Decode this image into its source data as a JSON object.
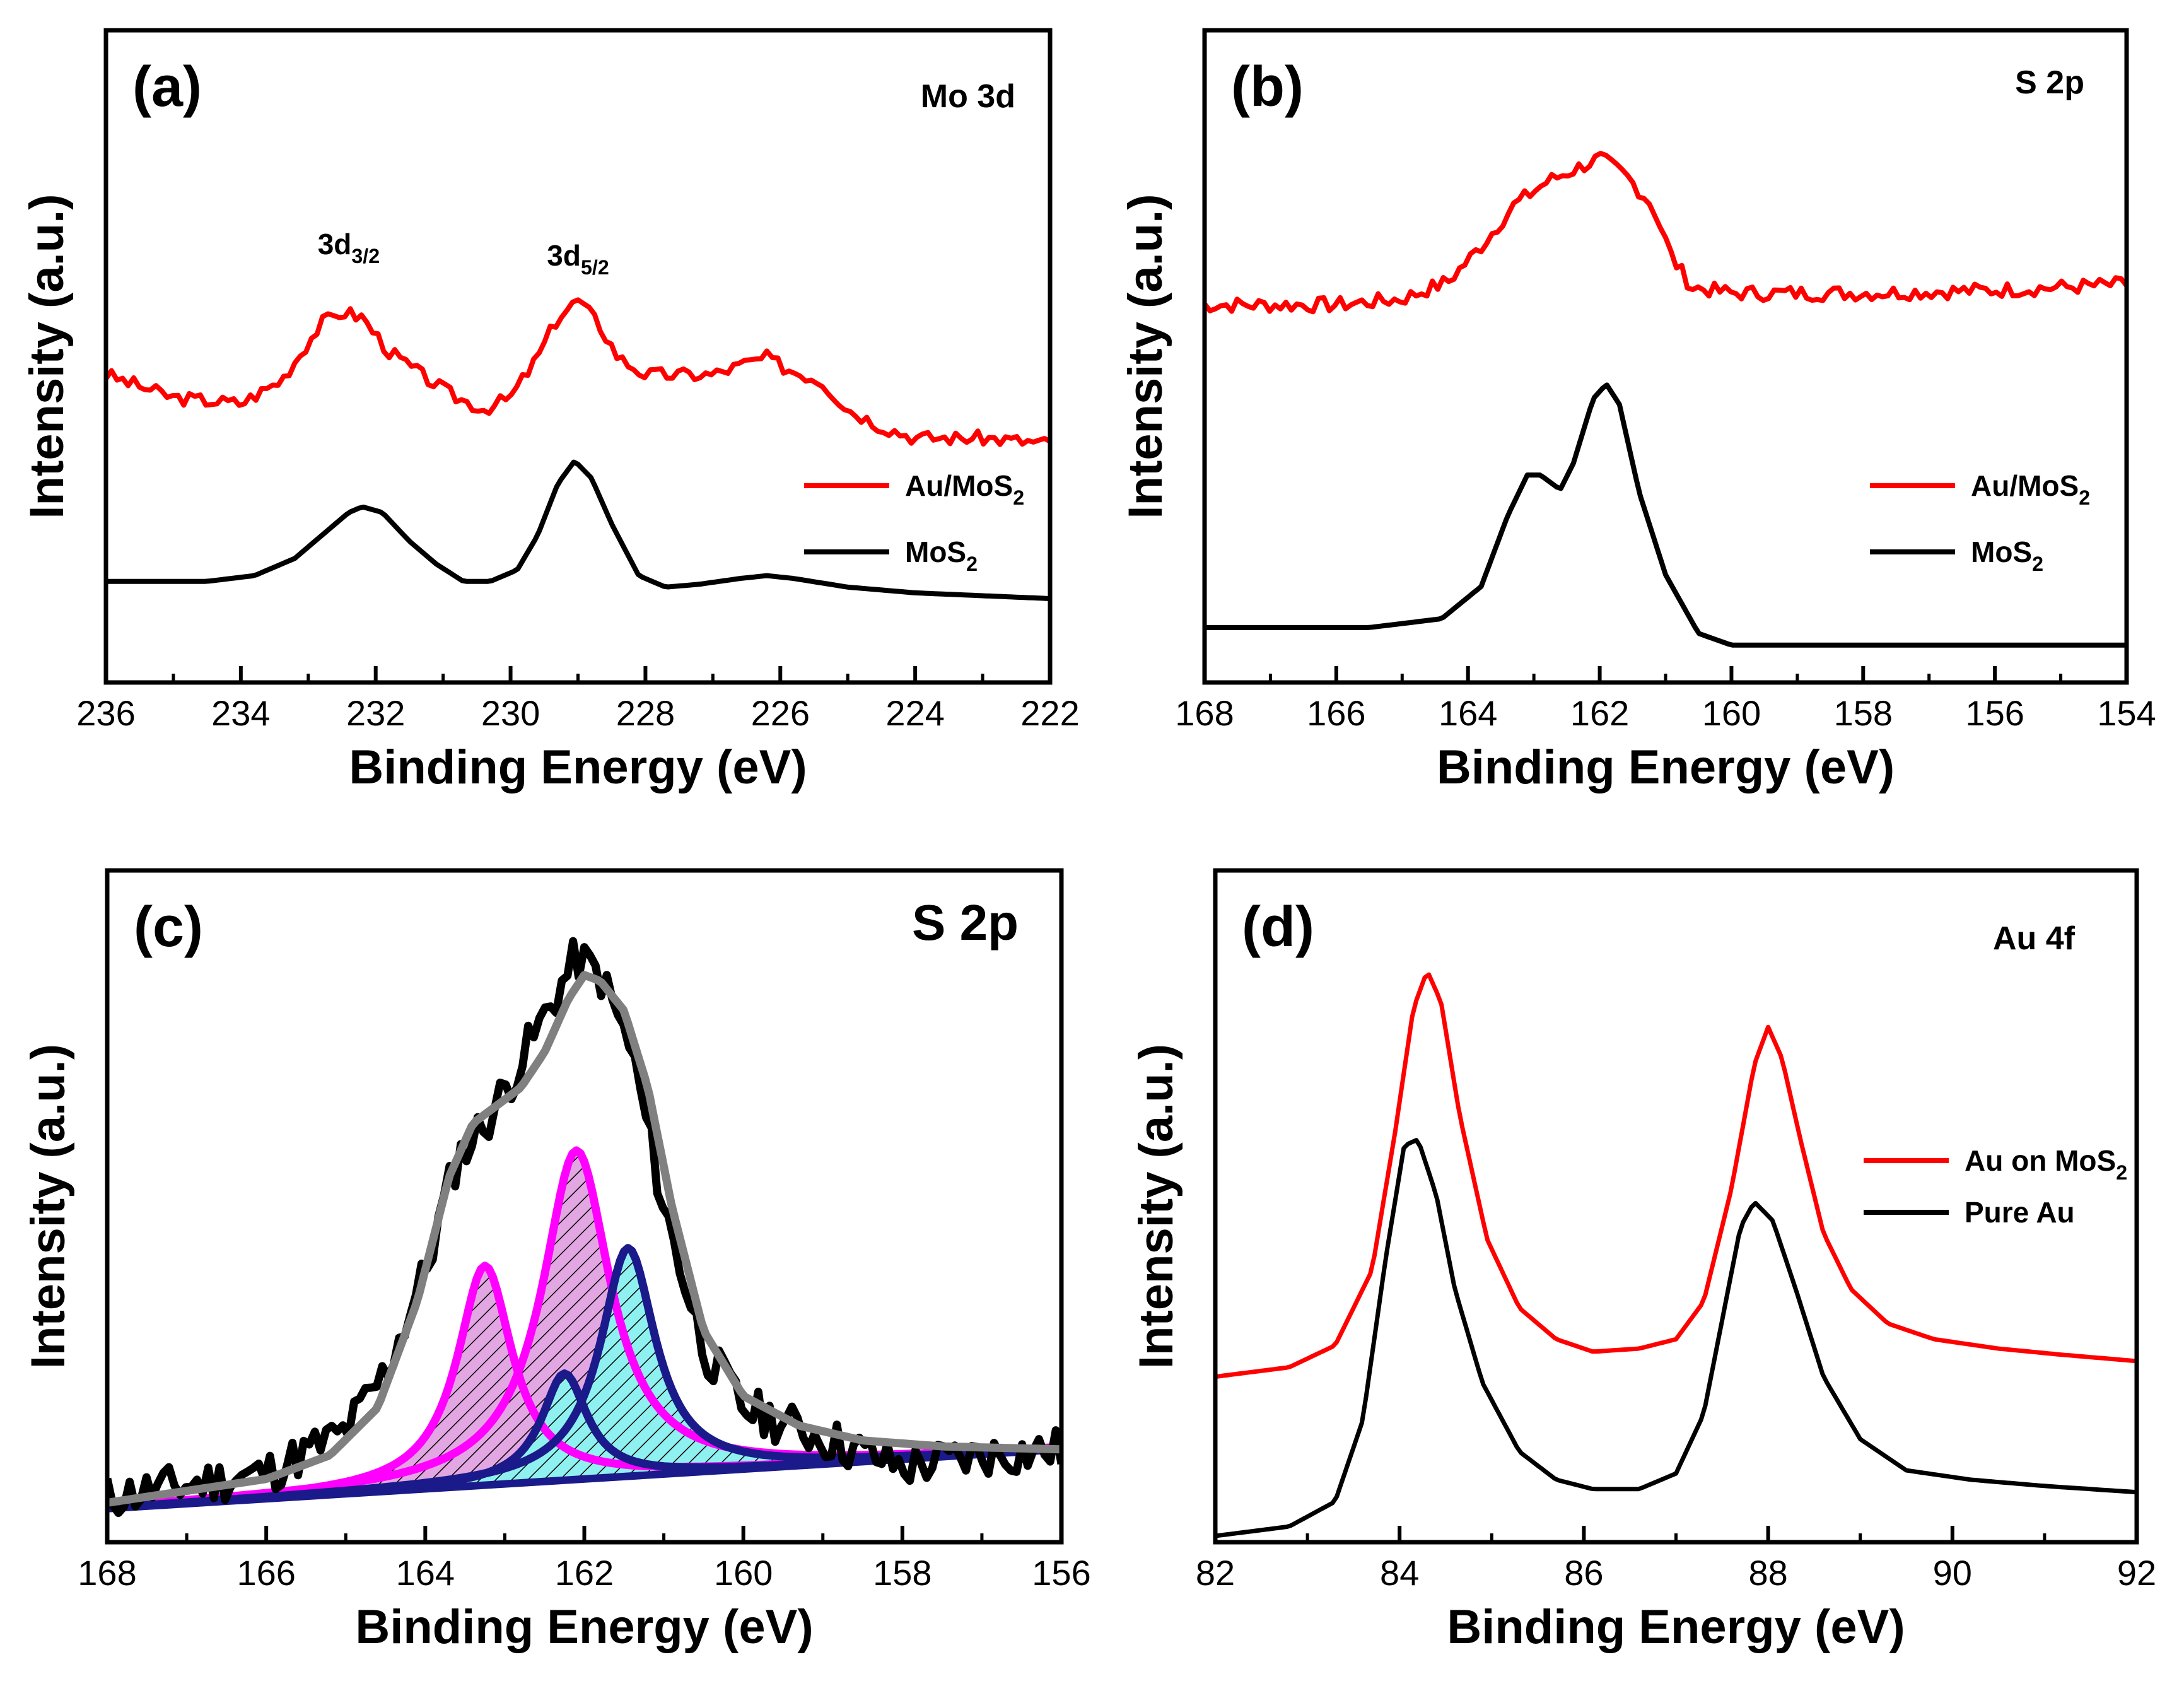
{
  "chart_data": [
    {
      "panel": "a",
      "type": "line",
      "label": "(a)",
      "title": "Mo 3d",
      "xlabel": "Binding Energy (eV)",
      "ylabel": "Intensity (a.u.)",
      "xlim": [
        236,
        222
      ],
      "ylim": [
        0,
        10
      ],
      "xticks": [
        236,
        234,
        232,
        230,
        228,
        226,
        224,
        222
      ],
      "annotations": [
        {
          "base": "3d",
          "sub": "3/2",
          "x": 232.4,
          "y": 7.0
        },
        {
          "base": "3d",
          "sub": "5/2",
          "x": 229.0,
          "y": 6.8
        }
      ],
      "series": [
        {
          "name": "Au/MoS",
          "sub": "2",
          "color": "#ff0000",
          "noise": 0.12,
          "seed": 3,
          "x": [
            236,
            235,
            234,
            233.4,
            232.8,
            232.5,
            232.2,
            231.8,
            231.2,
            230.8,
            230.4,
            230.0,
            229.6,
            229.3,
            229.0,
            228.7,
            228.4,
            228.0,
            227.5,
            227.0,
            226.5,
            226.2,
            225.9,
            225.4,
            225.0,
            224.5,
            224.0,
            223.0,
            222
          ],
          "y": [
            4.9,
            4.5,
            4.4,
            4.8,
            5.8,
            6.0,
            5.9,
            5.3,
            4.8,
            4.5,
            4.3,
            4.5,
            5.2,
            5.9,
            6.2,
            5.8,
            5.2,
            4.9,
            4.9,
            4.9,
            5.1,
            5.2,
            5.0,
            4.8,
            4.3,
            4.0,
            3.8,
            3.8,
            3.7
          ]
        },
        {
          "name": "MoS",
          "sub": "2",
          "color": "#000000",
          "noise": 0,
          "seed": 0,
          "x": [
            236,
            234.5,
            233.8,
            233.2,
            232.7,
            232.4,
            232.2,
            231.9,
            231.5,
            231.1,
            230.7,
            230.3,
            229.9,
            229.6,
            229.3,
            229.05,
            228.8,
            228.5,
            228.1,
            227.7,
            227.2,
            226.6,
            226.2,
            225.8,
            225.0,
            224.0,
            223.0,
            222
          ],
          "y": [
            1.3,
            1.3,
            1.4,
            1.7,
            2.2,
            2.5,
            2.6,
            2.5,
            2.0,
            1.6,
            1.3,
            1.3,
            1.5,
            2.1,
            3.0,
            3.4,
            3.1,
            2.3,
            1.4,
            1.2,
            1.25,
            1.35,
            1.4,
            1.35,
            1.2,
            1.1,
            1.05,
            1.0
          ]
        }
      ],
      "legend": [
        {
          "name": "Au/MoS",
          "sub": "2",
          "color": "#ff0000"
        },
        {
          "name": "MoS",
          "sub": "2",
          "color": "#000000"
        }
      ]
    },
    {
      "panel": "b",
      "type": "line",
      "label": "(b)",
      "title": "S 2p",
      "xlabel": "Binding Energy (eV)",
      "ylabel": "Intensity (a.u.)",
      "xlim": [
        168,
        154
      ],
      "ylim": [
        0,
        10
      ],
      "xticks": [
        168,
        166,
        164,
        162,
        160,
        158,
        156,
        154
      ],
      "series": [
        {
          "name": "Au/MoS",
          "sub": "2",
          "color": "#ff0000",
          "noise": 0.13,
          "seed": 7,
          "x": [
            168,
            166,
            165,
            164.3,
            163.8,
            163.3,
            162.8,
            162.4,
            162.0,
            161.6,
            161.2,
            160.9,
            160.6,
            160.0,
            158,
            156,
            154
          ],
          "y": [
            6.2,
            6.2,
            6.3,
            6.6,
            7.2,
            7.9,
            8.3,
            8.5,
            8.7,
            8.4,
            7.9,
            7.0,
            6.5,
            6.4,
            6.4,
            6.45,
            6.55
          ]
        },
        {
          "name": "MoS",
          "sub": "2",
          "color": "#000000",
          "noise": 0,
          "seed": 0,
          "x": [
            168,
            165.5,
            164.4,
            163.8,
            163.4,
            163.1,
            162.9,
            162.6,
            162.4,
            162.1,
            161.9,
            161.7,
            161.4,
            161.0,
            160.5,
            160.0,
            159,
            154
          ],
          "y": [
            0.7,
            0.7,
            0.85,
            1.4,
            2.6,
            3.3,
            3.3,
            3.05,
            3.5,
            4.6,
            4.85,
            4.5,
            3.0,
            1.6,
            0.6,
            0.4,
            0.4,
            0.4
          ]
        }
      ],
      "legend": [
        {
          "name": "Au/MoS",
          "sub": "2",
          "color": "#ff0000"
        },
        {
          "name": "MoS",
          "sub": "2",
          "color": "#000000"
        }
      ]
    },
    {
      "panel": "c",
      "type": "area",
      "label": "(c)",
      "title": "S 2p",
      "xlabel": "Binding Energy (eV)",
      "ylabel": "Intensity (a.u.)",
      "xlim": [
        168,
        156
      ],
      "ylim": [
        0,
        10
      ],
      "xticks": [
        168,
        166,
        164,
        162,
        160,
        158,
        156
      ],
      "baseline": {
        "x": [
          168,
          156
        ],
        "y": [
          0.3,
          1.3
        ],
        "color": "#1a1a8a"
      },
      "components": [
        {
          "name": "peak1",
          "center": 163.25,
          "amp": 3.7,
          "width": 0.42,
          "color": "#ff00ff",
          "fill": "#d9a0d9"
        },
        {
          "name": "peak2",
          "center": 162.1,
          "amp": 5.55,
          "width": 0.52,
          "color": "#ff00ff",
          "fill": "#d9a0d9"
        },
        {
          "name": "peak3",
          "center": 162.25,
          "amp": 1.8,
          "width": 0.35,
          "color": "#1a1a8a",
          "fill": "#8ff0f0"
        },
        {
          "name": "peak4",
          "center": 161.45,
          "amp": 3.85,
          "width": 0.42,
          "color": "#1a1a8a",
          "fill": "#8ff0f0"
        }
      ],
      "series": [
        {
          "name": "raw",
          "color": "#000000",
          "noise": 0.38,
          "seed": 11,
          "x": [
            168,
            166,
            165,
            164.5,
            164.0,
            163.6,
            163.2,
            162.9,
            162.5,
            162.1,
            161.8,
            161.4,
            161.0,
            160.5,
            160.0,
            159.0,
            158.0,
            157.0,
            156
          ],
          "y": [
            0.5,
            0.9,
            1.6,
            2.6,
            4.3,
            6.2,
            6.9,
            7.6,
            8.6,
            9.6,
            9.3,
            8.0,
            5.4,
            3.0,
            2.0,
            1.5,
            1.0,
            1.2,
            1.3
          ]
        },
        {
          "name": "envelope",
          "color": "#808080",
          "noise": 0,
          "seed": 0,
          "x": [
            168,
            166,
            165.2,
            164.6,
            164.1,
            163.7,
            163.4,
            163.1,
            162.8,
            162.5,
            162.2,
            162.0,
            161.8,
            161.5,
            161.2,
            160.9,
            160.5,
            160.0,
            159.3,
            158.5,
            157.5,
            156
          ],
          "y": [
            0.4,
            0.8,
            1.2,
            2.0,
            3.8,
            5.9,
            6.8,
            7.1,
            7.4,
            8.0,
            8.9,
            9.3,
            9.2,
            8.7,
            7.4,
            5.4,
            3.3,
            2.2,
            1.7,
            1.45,
            1.35,
            1.3
          ]
        }
      ]
    },
    {
      "panel": "d",
      "type": "line",
      "label": "(d)",
      "title": "Au 4f",
      "xlabel": "Binding Energy (eV)",
      "ylabel": "Intensity (a.u.)",
      "xlim": [
        82,
        92
      ],
      "ylim": [
        0,
        10
      ],
      "xticks": [
        82,
        84,
        86,
        88,
        90,
        92
      ],
      "series": [
        {
          "name": "Au on MoS",
          "sub": "2",
          "color": "#ff0000",
          "noise": 0,
          "seed": 0,
          "x": [
            82,
            82.8,
            83.3,
            83.7,
            83.95,
            84.15,
            84.3,
            84.45,
            84.65,
            84.95,
            85.3,
            85.7,
            86.1,
            86.6,
            87.0,
            87.3,
            87.6,
            87.85,
            88.0,
            88.15,
            88.35,
            88.6,
            88.9,
            89.3,
            89.8,
            90.5,
            91.2,
            92
          ],
          "y": [
            2.6,
            2.75,
            3.1,
            4.3,
            6.5,
            8.5,
            9.1,
            8.6,
            6.8,
            4.8,
            3.7,
            3.2,
            3.0,
            3.05,
            3.2,
            3.8,
            5.6,
            7.6,
            8.2,
            7.7,
            6.4,
            4.9,
            4.0,
            3.45,
            3.2,
            3.05,
            2.95,
            2.85
          ]
        },
        {
          "name": "Pure Au",
          "sub": "",
          "color": "#000000",
          "noise": 0,
          "seed": 0,
          "x": [
            82,
            82.8,
            83.3,
            83.6,
            83.85,
            84.05,
            84.2,
            84.4,
            84.6,
            84.9,
            85.3,
            85.7,
            86.1,
            86.6,
            87.0,
            87.3,
            87.5,
            87.7,
            87.85,
            88.05,
            88.3,
            88.6,
            89.0,
            89.5,
            90.2,
            91.0,
            92
          ],
          "y": [
            0.05,
            0.2,
            0.6,
            1.9,
            4.5,
            6.3,
            6.4,
            5.5,
            4.0,
            2.5,
            1.4,
            0.95,
            0.8,
            0.8,
            1.05,
            2.0,
            3.5,
            5.0,
            5.4,
            5.1,
            4.0,
            2.6,
            1.6,
            1.1,
            0.95,
            0.85,
            0.75
          ]
        }
      ],
      "legend": [
        {
          "name": "Au on MoS",
          "sub": "2",
          "color": "#ff0000"
        },
        {
          "name": "Pure Au",
          "sub": "",
          "color": "#000000"
        }
      ]
    }
  ]
}
